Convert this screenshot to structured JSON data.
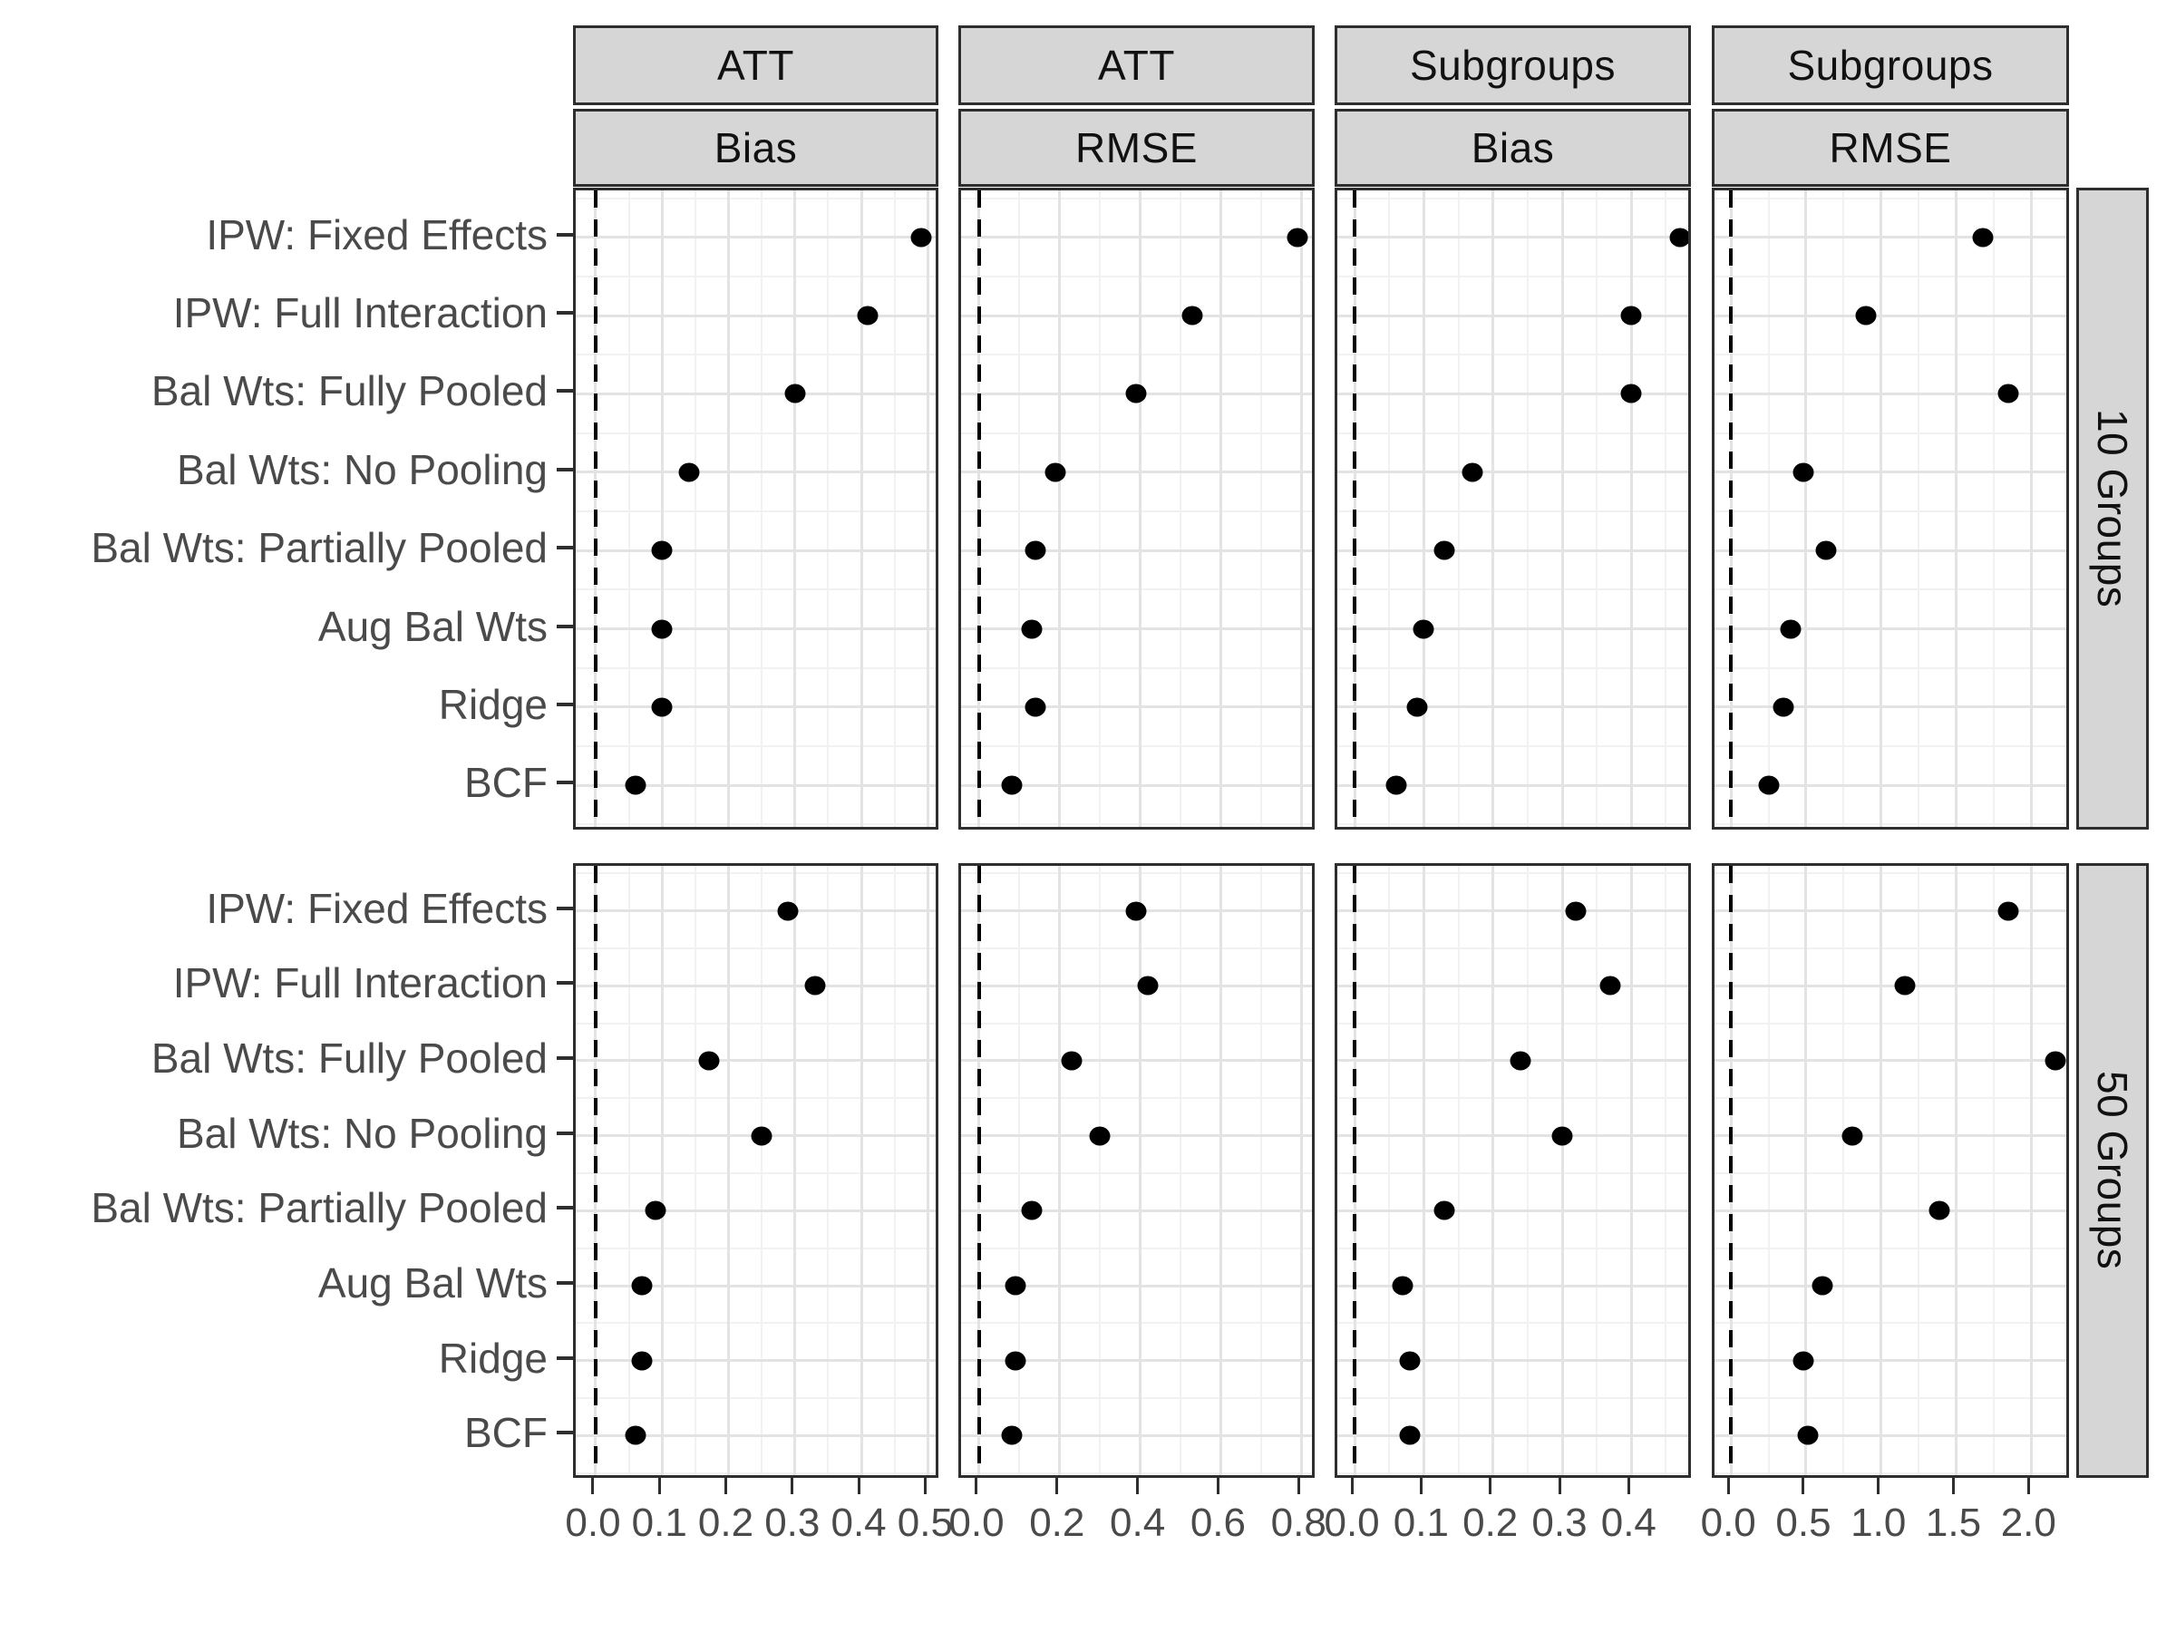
{
  "figure": {
    "facet_rows": [
      "10 Groups",
      "50 Groups"
    ],
    "facet_columns": [
      {
        "header": "ATT",
        "metric": "Bias"
      },
      {
        "header": "ATT",
        "metric": "RMSE"
      },
      {
        "header": "Subgroups",
        "metric": "Bias"
      },
      {
        "header": "Subgroups",
        "metric": "RMSE"
      }
    ]
  },
  "chart_data": {
    "type": "scatter",
    "subtype": "faceted-dot-plot",
    "legend": "none",
    "grid": "major and minor, light gray on white",
    "categories": [
      "IPW: Fixed Effects",
      "IPW: Full Interaction",
      "Bal Wts: Fully Pooled",
      "Bal Wts: No Pooling",
      "Bal Wts: Partially Pooled",
      "Aug Bal Wts",
      "Ridge",
      "BCF"
    ],
    "facet_rows": [
      "10 Groups",
      "50 Groups"
    ],
    "facet_columns": [
      "ATT | Bias",
      "ATT | RMSE",
      "Subgroups | Bias",
      "Subgroups | RMSE"
    ],
    "reference_line_x": 0,
    "x_axes": [
      {
        "ticks": [
          0.0,
          0.1,
          0.2,
          0.3,
          0.4,
          0.5
        ],
        "tick_labels": [
          "0.0",
          "0.1",
          "0.2",
          "0.3",
          "0.4",
          "0.5"
        ],
        "domain": [
          -0.03,
          0.52
        ]
      },
      {
        "ticks": [
          0.0,
          0.2,
          0.4,
          0.6,
          0.8
        ],
        "tick_labels": [
          "0.0",
          "0.2",
          "0.4",
          "0.6",
          "0.8"
        ],
        "domain": [
          -0.045,
          0.84
        ]
      },
      {
        "ticks": [
          0.0,
          0.1,
          0.2,
          0.3,
          0.4
        ],
        "tick_labels": [
          "0.0",
          "0.1",
          "0.2",
          "0.3",
          "0.4"
        ],
        "domain": [
          -0.025,
          0.49
        ]
      },
      {
        "ticks": [
          0.0,
          0.5,
          1.0,
          1.5,
          2.0
        ],
        "tick_labels": [
          "0.0",
          "0.5",
          "1.0",
          "1.5",
          "2.0"
        ],
        "domain": [
          -0.11,
          2.27
        ]
      }
    ],
    "panels": [
      {
        "row": "10 Groups",
        "column": "ATT",
        "metric": "Bias",
        "values": [
          0.49,
          0.41,
          0.3,
          0.14,
          0.1,
          0.1,
          0.1,
          0.06
        ]
      },
      {
        "row": "10 Groups",
        "column": "ATT",
        "metric": "RMSE",
        "values": [
          0.79,
          0.53,
          0.39,
          0.19,
          0.14,
          0.13,
          0.14,
          0.08
        ]
      },
      {
        "row": "10 Groups",
        "column": "Subgroups",
        "metric": "Bias",
        "values": [
          0.47,
          0.4,
          0.4,
          0.17,
          0.13,
          0.1,
          0.09,
          0.06
        ]
      },
      {
        "row": "10 Groups",
        "column": "Subgroups",
        "metric": "RMSE",
        "values": [
          1.68,
          0.9,
          1.85,
          0.48,
          0.63,
          0.4,
          0.35,
          0.25
        ]
      },
      {
        "row": "50 Groups",
        "column": "ATT",
        "metric": "Bias",
        "values": [
          0.29,
          0.33,
          0.17,
          0.25,
          0.09,
          0.07,
          0.07,
          0.06
        ]
      },
      {
        "row": "50 Groups",
        "column": "ATT",
        "metric": "RMSE",
        "values": [
          0.39,
          0.42,
          0.23,
          0.3,
          0.13,
          0.09,
          0.09,
          0.08
        ]
      },
      {
        "row": "50 Groups",
        "column": "Subgroups",
        "metric": "Bias",
        "values": [
          0.32,
          0.37,
          0.24,
          0.3,
          0.13,
          0.07,
          0.08,
          0.08
        ]
      },
      {
        "row": "50 Groups",
        "column": "Subgroups",
        "metric": "RMSE",
        "values": [
          1.85,
          1.16,
          2.16,
          0.81,
          1.39,
          0.61,
          0.48,
          0.51
        ]
      }
    ],
    "colors": {
      "point": "#000000",
      "reference_line": "#000000",
      "strip_fill": "#d6d6d6",
      "strip_border": "#2e2e2e",
      "strip_text": "#111111",
      "panel_border": "#2e2e2e",
      "grid_major": "#e3e3e3",
      "grid_minor": "#f1f1f1",
      "axis_text": "#4a4a4a",
      "axis_tick": "#2e2e2e"
    }
  }
}
